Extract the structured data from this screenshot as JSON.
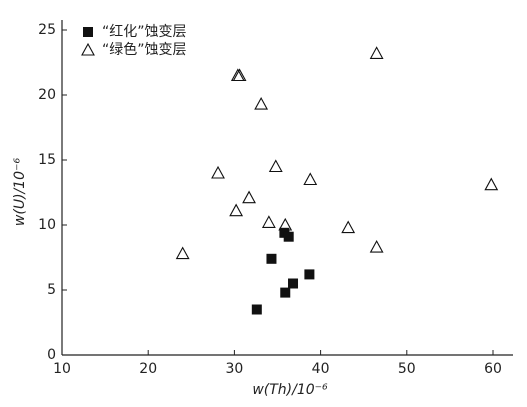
{
  "chart_data": {
    "type": "scatter",
    "x_label": "w(Th)/10⁻⁶",
    "y_label": "w(U)/10⁻⁶",
    "xlim": [
      10,
      60
    ],
    "xticks": [
      10,
      20,
      30,
      40,
      50,
      60
    ],
    "ylim": [
      0,
      25
    ],
    "yticks": [
      0,
      5,
      10,
      15,
      20,
      25
    ],
    "legend": "top-left",
    "series": [
      {
        "name": "“红化”蚀变层",
        "marker": "filled-square",
        "color": "#111111",
        "x": [
          32.6,
          34.3,
          35.8,
          36.3,
          35.9,
          36.8,
          38.7
        ],
        "values": [
          3.5,
          7.4,
          9.4,
          9.1,
          4.8,
          5.5,
          6.2
        ]
      },
      {
        "name": "“绿色”蚀变层",
        "marker": "open-triangle",
        "color": "#111111",
        "x": [
          24.0,
          30.4,
          30.6,
          33.1,
          46.5,
          34.8,
          28.1,
          31.7,
          30.2,
          38.8,
          34.0,
          35.9,
          43.2,
          46.5,
          59.8
        ],
        "values": [
          7.8,
          21.5,
          21.5,
          19.3,
          23.2,
          14.5,
          14.0,
          12.1,
          11.1,
          13.5,
          10.2,
          10.0,
          9.8,
          8.3,
          13.1
        ]
      }
    ]
  }
}
